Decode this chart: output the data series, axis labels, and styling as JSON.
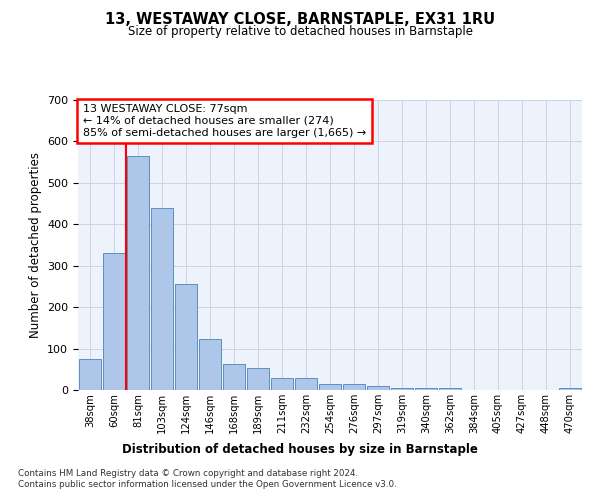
{
  "title": "13, WESTAWAY CLOSE, BARNSTAPLE, EX31 1RU",
  "subtitle": "Size of property relative to detached houses in Barnstaple",
  "xlabel": "Distribution of detached houses by size in Barnstaple",
  "ylabel": "Number of detached properties",
  "categories": [
    "38sqm",
    "60sqm",
    "81sqm",
    "103sqm",
    "124sqm",
    "146sqm",
    "168sqm",
    "189sqm",
    "211sqm",
    "232sqm",
    "254sqm",
    "276sqm",
    "297sqm",
    "319sqm",
    "340sqm",
    "362sqm",
    "384sqm",
    "405sqm",
    "427sqm",
    "448sqm",
    "470sqm"
  ],
  "values": [
    75,
    330,
    565,
    440,
    255,
    122,
    63,
    53,
    28,
    28,
    15,
    15,
    10,
    4,
    4,
    4,
    0,
    0,
    0,
    0,
    5
  ],
  "bar_color": "#aec6e8",
  "bar_edge_color": "#5a8fc2",
  "vline_color": "red",
  "vline_position": 1.5,
  "annotation_text": "13 WESTAWAY CLOSE: 77sqm\n← 14% of detached houses are smaller (274)\n85% of semi-detached houses are larger (1,665) →",
  "ylim": [
    0,
    700
  ],
  "yticks": [
    0,
    100,
    200,
    300,
    400,
    500,
    600,
    700
  ],
  "footer_line1": "Contains HM Land Registry data © Crown copyright and database right 2024.",
  "footer_line2": "Contains public sector information licensed under the Open Government Licence v3.0.",
  "bg_color": "#eef2fb",
  "grid_color": "#c8d4e8"
}
